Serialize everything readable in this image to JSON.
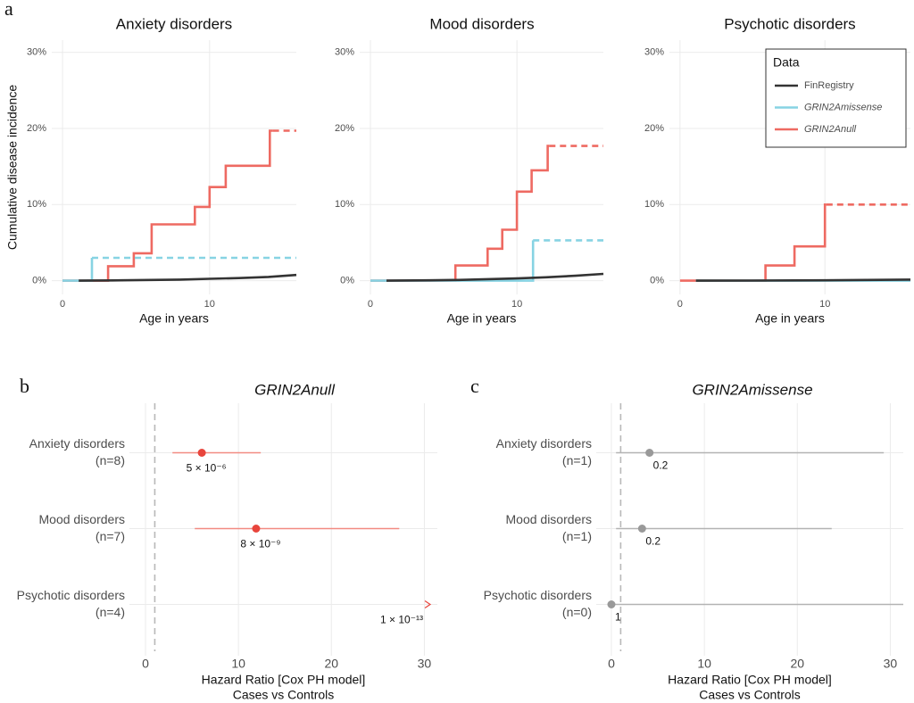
{
  "chart_data": [
    {
      "type": "line",
      "panel": "a",
      "title": "Anxiety disorders",
      "ylabel": "Cumulative disease incidence",
      "xlabel": "Age in years",
      "xlim": [
        -0.73,
        15.9
      ],
      "xticks": [
        0,
        10
      ],
      "ylim": [
        -1.8,
        31.6
      ],
      "yticks": [
        {
          "value": 0,
          "label": "0%"
        },
        {
          "value": 10,
          "label": "10%"
        },
        {
          "value": 20,
          "label": "20%"
        },
        {
          "value": 30,
          "label": "30%"
        }
      ],
      "grid": true,
      "series": [
        {
          "color": "#333333",
          "step": false,
          "x": [
            1.1,
            4,
            6,
            8,
            10,
            12,
            14,
            15.9
          ],
          "values": [
            0,
            0.05,
            0.1,
            0.15,
            0.25,
            0.35,
            0.5,
            0.75
          ]
        },
        {
          "color": "#87d3e3",
          "step": true,
          "dashed_after": 2.0,
          "x": [
            0,
            2.0,
            15.9
          ],
          "values": [
            0,
            3.0,
            3.0
          ]
        },
        {
          "color": "#ee6a62",
          "step": true,
          "dashed_after": 14.3,
          "x": [
            0,
            3.1,
            4.85,
            6.06,
            9.0,
            10,
            11.1,
            14.1,
            15.9
          ],
          "values": [
            0,
            1.9,
            3.6,
            7.4,
            9.7,
            12.3,
            15.1,
            19.7,
            19.7
          ]
        }
      ]
    },
    {
      "type": "line",
      "title": "Mood disorders",
      "xlabel": "Age in years",
      "xlim": [
        -0.73,
        15.9
      ],
      "xticks": [
        0,
        10
      ],
      "ylim": [
        -1.8,
        31.6
      ],
      "yticks": [
        {
          "value": 0,
          "label": "0%"
        },
        {
          "value": 10,
          "label": "10%"
        },
        {
          "value": 20,
          "label": "20%"
        },
        {
          "value": 30,
          "label": "30%"
        }
      ],
      "grid": true,
      "series": [
        {
          "color": "#333333",
          "step": false,
          "x": [
            1.1,
            4,
            6,
            8,
            10,
            12,
            14,
            15.9
          ],
          "values": [
            0,
            0.05,
            0.1,
            0.2,
            0.3,
            0.45,
            0.65,
            0.9
          ]
        },
        {
          "color": "#87d3e3",
          "step": true,
          "dashed_after": 11.1,
          "x": [
            0,
            11.1,
            15.9
          ],
          "values": [
            0,
            5.3,
            5.3
          ]
        },
        {
          "color": "#ee6a62",
          "step": true,
          "dashed_after": 12.2,
          "x": [
            0,
            5.8,
            8.0,
            9.0,
            10,
            11.0,
            12.1,
            15.9
          ],
          "values": [
            0,
            2.0,
            4.2,
            6.7,
            11.7,
            14.5,
            17.7,
            17.7
          ]
        }
      ]
    },
    {
      "type": "line",
      "title": "Psychotic disorders",
      "xlabel": "Age in years",
      "xlim": [
        -0.73,
        15.9
      ],
      "xticks": [
        0,
        10
      ],
      "ylim": [
        -1.8,
        31.6
      ],
      "yticks": [
        {
          "value": 0,
          "label": "0%"
        },
        {
          "value": 10,
          "label": "10%"
        },
        {
          "value": 20,
          "label": "20%"
        },
        {
          "value": 30,
          "label": "30%"
        }
      ],
      "grid": true,
      "legend": {
        "title": "Data",
        "position": "top-right"
      },
      "series": [
        {
          "name": "FinRegistry",
          "color": "#333333",
          "step": false,
          "x": [
            1.1,
            5,
            10,
            15.9
          ],
          "values": [
            0,
            0.02,
            0.05,
            0.15
          ]
        },
        {
          "name": "GRIN2Amissense",
          "color": "#87d3e3",
          "step": true,
          "x": [
            1.1,
            15.9
          ],
          "values": [
            0,
            0
          ]
        },
        {
          "name": "GRIN2Anull",
          "color": "#ee6a62",
          "step": true,
          "dashed_after": 10.1,
          "x": [
            0,
            5.9,
            7.9,
            10,
            15.9
          ],
          "values": [
            0,
            2.0,
            4.5,
            10.0,
            10.0
          ]
        }
      ]
    },
    {
      "type": "forest",
      "panel": "b",
      "title": "GRIN2Anull",
      "categories": [
        "Anxiety disorders",
        "Mood disorders",
        "Psychotic disorders"
      ],
      "category_notes": [
        "(n=8)",
        "(n=7)",
        "(n=4)"
      ],
      "values": [
        6.06,
        11.9,
        null
      ],
      "ci_low": [
        2.9,
        5.3,
        null
      ],
      "ci_high": [
        12.4,
        27.3,
        null
      ],
      "p_labels": [
        "5 × 10⁻⁶",
        "8 × 10⁻⁹",
        "1 × 10⁻¹³"
      ],
      "color": "#e8453c",
      "ci_color": "#f28b82",
      "reference_line": 1,
      "grid": true,
      "xlim": [
        -1.73,
        31.4
      ],
      "xticks": [
        0,
        10,
        20,
        30
      ],
      "xlabel": [
        "Hazard Ratio [Cox PH model]",
        "Cases vs Controls"
      ]
    },
    {
      "type": "forest",
      "panel": "c",
      "title": "GRIN2Amissense",
      "categories": [
        "Anxiety disorders",
        "Mood disorders",
        "Psychotic disorders"
      ],
      "category_notes": [
        "(n=1)",
        "(n=1)",
        "(n=0)"
      ],
      "values": [
        4.1,
        3.3,
        0
      ],
      "ci_low": [
        0.5,
        0.5,
        0
      ],
      "ci_high": [
        29.3,
        23.7,
        31.4
      ],
      "p_labels": [
        "0.2",
        "0.2",
        "1"
      ],
      "color": "#999999",
      "ci_color": "#b3b3b3",
      "reference_line": 1,
      "grid": true,
      "xlim": [
        -1.63,
        31.4
      ],
      "xticks": [
        0,
        10,
        20,
        30
      ],
      "xlabel": [
        "Hazard Ratio [Cox PH model]",
        "Cases vs Controls"
      ]
    }
  ]
}
